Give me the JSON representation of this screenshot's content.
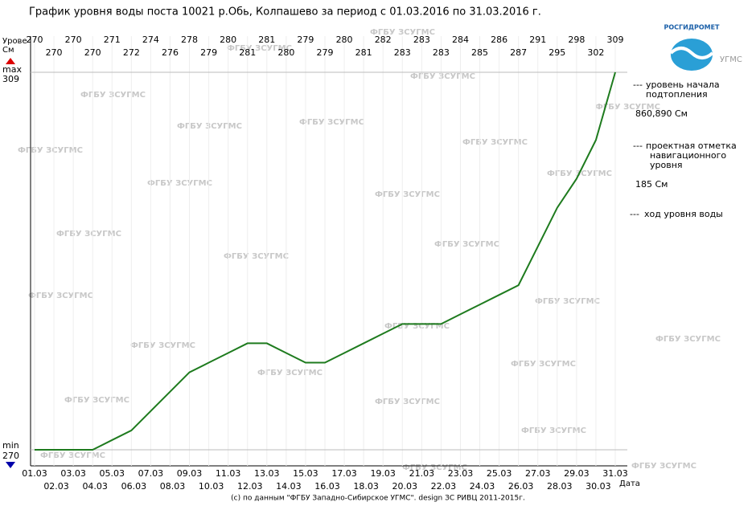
{
  "chart_data": {
    "type": "line",
    "title": "График уровня воды поста 10021 р.Обь, Колпашево за период с 01.03.2016 по 31.03.2016 г.",
    "y_label": [
      "Урове",
      "См"
    ],
    "x_label": "Дата",
    "max_label": "max",
    "min_label": "min",
    "categories": [
      "01.03",
      "02.03",
      "03.03",
      "04.03",
      "05.03",
      "06.03",
      "07.03",
      "08.03",
      "09.03",
      "10.03",
      "11.03",
      "12.03",
      "13.03",
      "14.03",
      "15.03",
      "16.03",
      "17.03",
      "18.03",
      "19.03",
      "20.03",
      "21.03",
      "22.03",
      "23.03",
      "24.03",
      "25.03",
      "26.03",
      "27.03",
      "28.03",
      "29.03",
      "30.03",
      "31.03"
    ],
    "series": [
      {
        "name": "ход уровня воды",
        "color": "#1e7b1e",
        "values": [
          270,
          270,
          270,
          270,
          271,
          272,
          274,
          276,
          278,
          279,
          280,
          281,
          281,
          280,
          279,
          279,
          280,
          281,
          282,
          283,
          283,
          283,
          284,
          285,
          286,
          287,
          291,
          295,
          298,
          302,
          309
        ]
      }
    ],
    "ylim": [
      270,
      309
    ],
    "yticks": [
      270,
      309
    ]
  },
  "legend_marker": "---",
  "legend": [
    {
      "lines": [
        "уровень начала",
        "подтопления"
      ],
      "value": "860,890 См",
      "color": "#cc0000"
    },
    {
      "lines": [
        "проектная отметка",
        "навигационного",
        "уровня"
      ],
      "value": "185 См",
      "color": "#000080"
    }
  ],
  "watermark": "ФГБУ ЗСУГМС",
  "logo": {
    "name": "РОСГИДРОМЕТ",
    "sub": "УГМС"
  },
  "footer": "(c) по данным \"ФГБУ Западно-Сибирское УГМС\". design ЗС РИВЦ 2011-2015г."
}
